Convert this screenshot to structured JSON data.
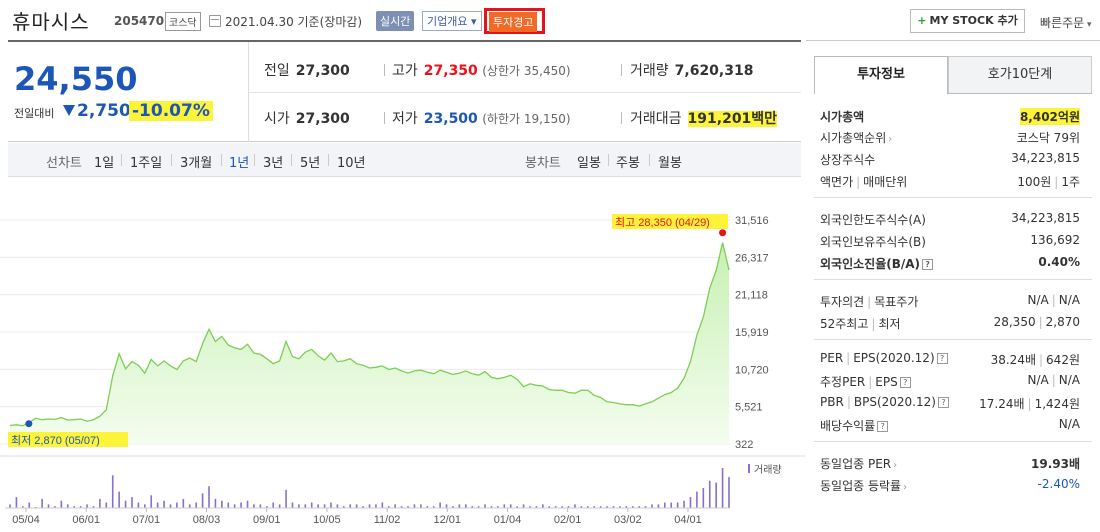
{
  "header": {
    "stock_name": "휴마시스",
    "stock_code": "205470",
    "market": "코스닥",
    "date_text": "2021.04.30 기준(장마감)",
    "realtime_label": "실시간",
    "overview_label": "기업개요",
    "warning_label": "투자경고",
    "mystock_label": "MY STOCK 추가",
    "quick_order_label": "빠른주문"
  },
  "summary": {
    "price": "24,550",
    "vs_label": "전일대비",
    "change": "2,750",
    "change_pct": "-10.07%",
    "prev_close_label": "전일",
    "prev_close": "27,300",
    "high_label": "고가",
    "high": "27,350",
    "upper_limit": "(상한가 35,450)",
    "volume_label": "거래량",
    "volume": "7,620,318",
    "open_label": "시가",
    "open": "27,300",
    "low_label": "저가",
    "low": "23,500",
    "lower_limit": "(하한가 19,150)",
    "amount_label": "거래대금",
    "amount": "191,201",
    "amount_unit": "백만"
  },
  "period_bar": {
    "line_label": "선차트",
    "line_periods": [
      "1일",
      "1주일",
      "3개월",
      "1년",
      "3년",
      "5년",
      "10년"
    ],
    "active_period": "1년",
    "candle_label": "봉차트",
    "candle_periods": [
      "일봉",
      "주봉",
      "월봉"
    ]
  },
  "chart_data": {
    "type": "area",
    "ylim": [
      322,
      31516
    ],
    "y_ticks": [
      "31,516",
      "26,317",
      "21,118",
      "15,919",
      "10,720",
      "5,521",
      "322"
    ],
    "x_ticks": [
      "05/04",
      "06/01",
      "07/01",
      "08/03",
      "09/01",
      "10/05",
      "11/02",
      "12/01",
      "01/04",
      "02/01",
      "03/02",
      "04/01"
    ],
    "max_label": "최고 28,350 (04/29)",
    "min_label": "최저 2,870 (05/07)",
    "volume_legend": "거래량",
    "values": [
      2900,
      3000,
      2870,
      3300,
      3900,
      3700,
      3800,
      3750,
      4000,
      3650,
      3700,
      3800,
      3500,
      3700,
      4200,
      5100,
      9800,
      12900,
      10800,
      11800,
      11300,
      10200,
      12100,
      11200,
      11900,
      11200,
      10700,
      11900,
      12300,
      11800,
      14300,
      16300,
      14600,
      15300,
      14100,
      13700,
      13500,
      14200,
      13000,
      12800,
      12200,
      11500,
      11900,
      14600,
      12500,
      12200,
      13100,
      13500,
      12600,
      12000,
      13000,
      11800,
      11900,
      12200,
      11500,
      11300,
      10900,
      11000,
      11200,
      10700,
      10900,
      10500,
      10200,
      10500,
      10600,
      10300,
      10100,
      10600,
      10300,
      10000,
      10200,
      10500,
      10100,
      9900,
      10400,
      9600,
      9400,
      9600,
      9900,
      9300,
      8300,
      8700,
      8500,
      8400,
      7900,
      7800,
      7800,
      7500,
      7400,
      7800,
      7800,
      7100,
      6800,
      6200,
      6100,
      5900,
      5800,
      5800,
      5600,
      5900,
      6200,
      6700,
      7200,
      7500,
      8100,
      9500,
      11800,
      15500,
      18000,
      22000,
      24500,
      28350,
      24550
    ],
    "volume": [
      2,
      6,
      1,
      3,
      0,
      5,
      2,
      1,
      4,
      2,
      1,
      1,
      2,
      1,
      5,
      3,
      18,
      9,
      4,
      6,
      3,
      2,
      7,
      3,
      4,
      2,
      3,
      5,
      2,
      3,
      8,
      12,
      5,
      4,
      3,
      2,
      3,
      4,
      2,
      2,
      1,
      3,
      2,
      10,
      3,
      2,
      2,
      3,
      2,
      2,
      3,
      2,
      1,
      2,
      2,
      1,
      2,
      2,
      3,
      1,
      2,
      1,
      1,
      2,
      2,
      1,
      1,
      3,
      2,
      1,
      2,
      2,
      1,
      1,
      2,
      1,
      1,
      2,
      2,
      1,
      2,
      1,
      1,
      2,
      1,
      1,
      1,
      1,
      2,
      1,
      1,
      1,
      1,
      1,
      1,
      1,
      1,
      1,
      1,
      1,
      2,
      2,
      3,
      3,
      3,
      4,
      6,
      9,
      11,
      15,
      14,
      22,
      17
    ]
  },
  "right_panel": {
    "tab_active": "투자정보",
    "tab_other": "호가10단계",
    "market_cap_label": "시가총액",
    "market_cap": "8,402억원",
    "market_cap_rank_label": "시가총액순위",
    "market_cap_rank": "코스닥 79위",
    "shares_label": "상장주식수",
    "shares": "34,223,815",
    "par_label": "액면가",
    "unit_label": "매매단위",
    "par": "100원",
    "unit": "1주",
    "foreign_limit_label": "외국인한도주식수(A)",
    "foreign_limit": "34,223,815",
    "foreign_hold_label": "외국인보유주식수(B)",
    "foreign_hold": "136,692",
    "foreign_ratio_label": "외국인소진율(B/A)",
    "foreign_ratio": "0.40%",
    "opinion_label": "투자의견",
    "target_label": "목표주가",
    "opinion": "N/A",
    "target": "N/A",
    "w52_high_label": "52주최고",
    "w52_low_label": "최저",
    "w52_high": "28,350",
    "w52_low": "2,870",
    "per_label": "PER",
    "eps_label": "EPS(2020.12)",
    "per": "38.24배",
    "eps": "642원",
    "est_per_label": "추정PER",
    "est_eps_label": "EPS",
    "est_per": "N/A",
    "est_eps": "N/A",
    "pbr_label": "PBR",
    "bps_label": "BPS(2020.12)",
    "pbr": "17.24배",
    "bps": "1,424원",
    "div_label": "배당수익률",
    "div": "N/A",
    "ind_per_label": "동일업종 PER",
    "ind_per": "19.93배",
    "ind_rate_label": "동일업종 등락률",
    "ind_rate": "-2.40%"
  }
}
